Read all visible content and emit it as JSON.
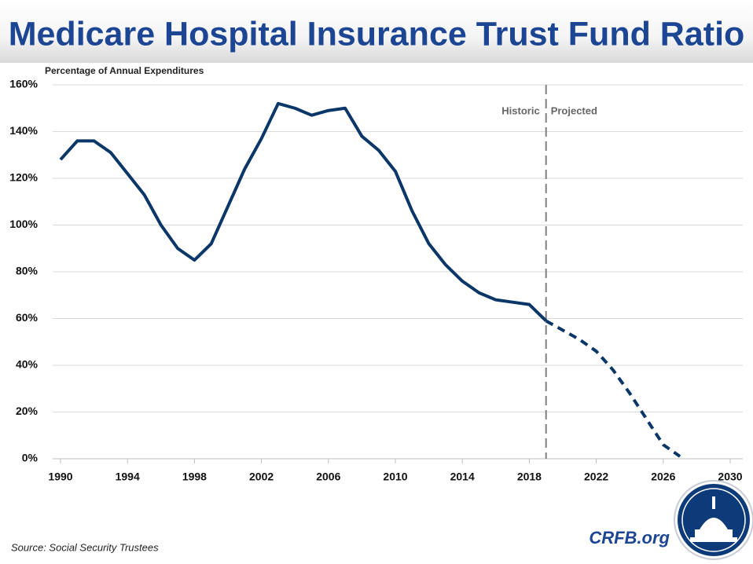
{
  "chart_data": {
    "type": "line",
    "title": "Medicare Hospital Insurance Trust Fund Ratio",
    "y_label": "Percentage of Annual Expenditures",
    "series": [
      {
        "name": "Historic",
        "color": "#0b3668",
        "dashed": false,
        "x": [
          1990,
          1991,
          1992,
          1993,
          1994,
          1995,
          1996,
          1997,
          1998,
          1999,
          2000,
          2001,
          2002,
          2003,
          2004,
          2005,
          2006,
          2007,
          2008,
          2009,
          2010,
          2011,
          2012,
          2013,
          2014,
          2015,
          2016,
          2017,
          2018,
          2019
        ],
        "values": [
          128,
          136,
          136,
          131,
          122,
          113,
          100,
          90,
          85,
          92,
          108,
          124,
          137,
          152,
          150,
          147,
          149,
          150,
          138,
          132,
          123,
          106,
          92,
          83,
          76,
          71,
          68,
          67,
          66,
          59
        ]
      },
      {
        "name": "Projected",
        "color": "#0b3668",
        "dashed": true,
        "x": [
          2019,
          2020,
          2021,
          2022,
          2023,
          2024,
          2025,
          2026,
          2027
        ],
        "values": [
          59,
          55,
          51,
          46,
          38,
          28,
          17,
          6,
          1
        ]
      }
    ],
    "xlim": [
      1990,
      2030
    ],
    "xticks": [
      1990,
      1994,
      1998,
      2002,
      2006,
      2010,
      2014,
      2018,
      2022,
      2026,
      2030
    ],
    "ylim": [
      0,
      160
    ],
    "yticks": [
      {
        "value": 0,
        "label": "0%"
      },
      {
        "value": 20,
        "label": "20%"
      },
      {
        "value": 40,
        "label": "40%"
      },
      {
        "value": 60,
        "label": "60%"
      },
      {
        "value": 80,
        "label": "80%"
      },
      {
        "value": 100,
        "label": "100%"
      },
      {
        "value": 120,
        "label": "120%"
      },
      {
        "value": 140,
        "label": "140%"
      },
      {
        "value": 160,
        "label": "160%"
      }
    ],
    "grid": true
  },
  "footer": {
    "source": "Source: Social Security Trustees",
    "brand": "CRFB.org"
  }
}
